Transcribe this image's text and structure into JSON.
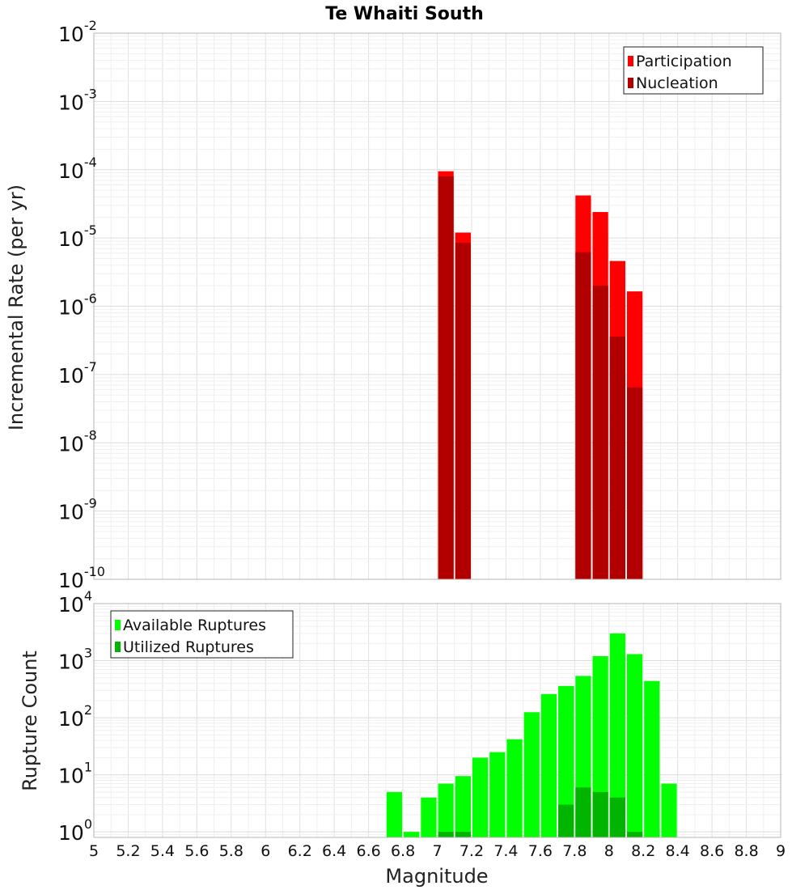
{
  "chart_data": [
    {
      "type": "bar",
      "title": "Te Whaiti South",
      "xlabel": "",
      "ylabel": "Incremental Rate (per yr)",
      "yscale": "log",
      "ylim": [
        1e-10,
        0.01
      ],
      "xlim": [
        5,
        9
      ],
      "bin_width": 0.1,
      "grid": true,
      "legend_position": "top-right",
      "y_ticks": [
        {
          "base": "10",
          "exp": "-10",
          "value": 1e-10
        },
        {
          "base": "10",
          "exp": "-9",
          "value": 1e-09
        },
        {
          "base": "10",
          "exp": "-8",
          "value": 1e-08
        },
        {
          "base": "10",
          "exp": "-7",
          "value": 1e-07
        },
        {
          "base": "10",
          "exp": "-6",
          "value": 1e-06
        },
        {
          "base": "10",
          "exp": "-5",
          "value": 1e-05
        },
        {
          "base": "10",
          "exp": "-4",
          "value": 0.0001
        },
        {
          "base": "10",
          "exp": "-3",
          "value": 0.001
        },
        {
          "base": "10",
          "exp": "-2",
          "value": 0.01
        }
      ],
      "series": [
        {
          "name": "Participation",
          "color": "#ff0000",
          "x": [
            7.05,
            7.15,
            7.85,
            7.95,
            8.05,
            8.15
          ],
          "values": [
            9.5e-05,
            1.2e-05,
            4.2e-05,
            2.4e-05,
            4.6e-06,
            1.65e-06
          ]
        },
        {
          "name": "Nucleation",
          "color": "#b20000",
          "x": [
            7.05,
            7.15,
            7.85,
            7.95,
            8.05,
            8.15
          ],
          "values": [
            8e-05,
            8.5e-06,
            6.2e-06,
            2e-06,
            3.6e-07,
            6.5e-08
          ]
        }
      ]
    },
    {
      "type": "bar",
      "title": "",
      "xlabel": "Magnitude",
      "ylabel": "Rupture Count",
      "yscale": "log",
      "ylim": [
        0.8,
        10000
      ],
      "xlim": [
        5,
        9
      ],
      "bin_width": 0.1,
      "grid": true,
      "legend_position": "top-left",
      "x_ticks": [
        "5",
        "5.2",
        "5.4",
        "5.6",
        "5.8",
        "6",
        "6.2",
        "6.4",
        "6.6",
        "6.8",
        "7",
        "7.2",
        "7.4",
        "7.6",
        "7.8",
        "8",
        "8.2",
        "8.4",
        "8.6",
        "8.8",
        "9"
      ],
      "y_ticks": [
        {
          "base": "10",
          "exp": "0",
          "value": 1
        },
        {
          "base": "10",
          "exp": "1",
          "value": 10
        },
        {
          "base": "10",
          "exp": "2",
          "value": 100
        },
        {
          "base": "10",
          "exp": "3",
          "value": 1000
        },
        {
          "base": "10",
          "exp": "4",
          "value": 10000
        }
      ],
      "series": [
        {
          "name": "Available Ruptures",
          "color": "#00ff00",
          "x": [
            6.75,
            6.85,
            6.95,
            7.05,
            7.15,
            7.25,
            7.35,
            7.45,
            7.55,
            7.65,
            7.75,
            7.85,
            7.95,
            8.05,
            8.15,
            8.25,
            8.35
          ],
          "values": [
            5,
            1,
            4,
            7,
            9.5,
            20,
            25,
            42,
            125,
            260,
            360,
            540,
            1200,
            3000,
            1300,
            440,
            7
          ]
        },
        {
          "name": "Utilized Ruptures",
          "color": "#00b400",
          "x": [
            7.05,
            7.15,
            7.75,
            7.85,
            7.95,
            8.05,
            8.15
          ],
          "values": [
            1,
            1,
            3,
            6,
            5,
            4,
            1
          ]
        }
      ]
    }
  ]
}
